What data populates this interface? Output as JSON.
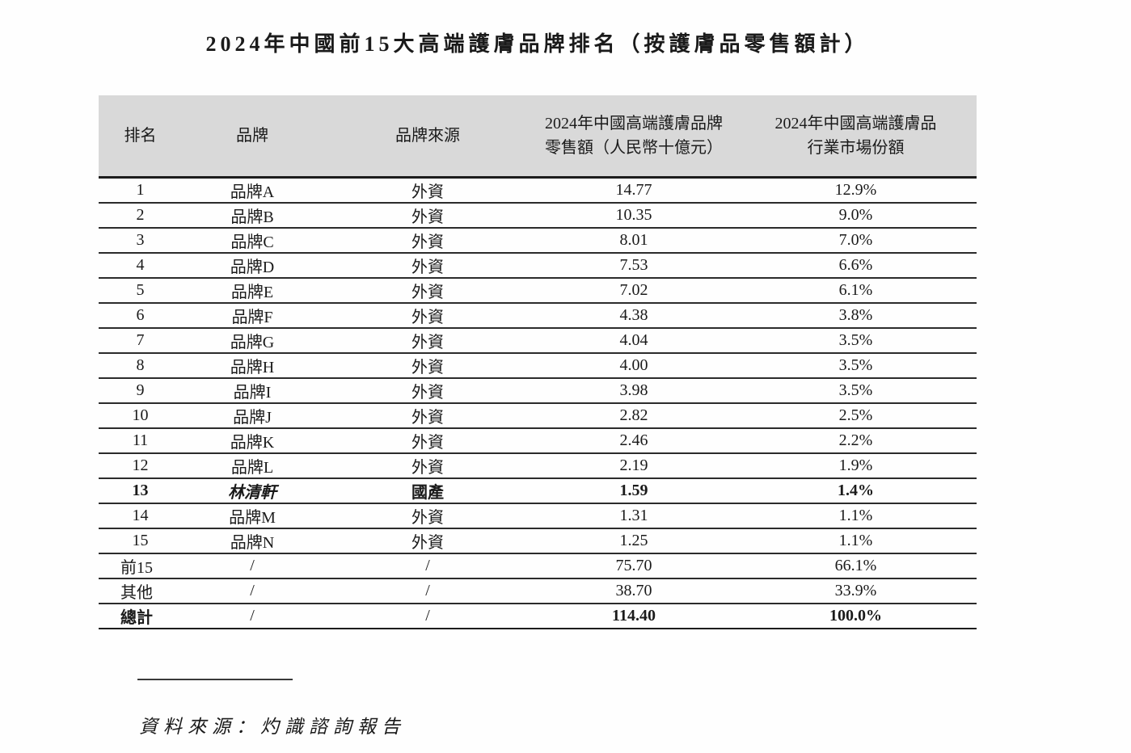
{
  "title": "2024年中國前15大高端護膚品牌排名（按護膚品零售額計）",
  "table": {
    "headers": {
      "rank": "排名",
      "brand": "品牌",
      "origin": "品牌來源",
      "retail": "2024年中國高端護膚品牌\n零售額（人民幣十億元）",
      "share": "2024年中國高端護膚品\n行業市場份額"
    },
    "rows": [
      {
        "rank": "1",
        "brand": "品牌A",
        "origin": "外資",
        "retail": "14.77",
        "share": "12.9%"
      },
      {
        "rank": "2",
        "brand": "品牌B",
        "origin": "外資",
        "retail": "10.35",
        "share": "9.0%"
      },
      {
        "rank": "3",
        "brand": "品牌C",
        "origin": "外資",
        "retail": "8.01",
        "share": "7.0%"
      },
      {
        "rank": "4",
        "brand": "品牌D",
        "origin": "外資",
        "retail": "7.53",
        "share": "6.6%"
      },
      {
        "rank": "5",
        "brand": "品牌E",
        "origin": "外資",
        "retail": "7.02",
        "share": "6.1%"
      },
      {
        "rank": "6",
        "brand": "品牌F",
        "origin": "外資",
        "retail": "4.38",
        "share": "3.8%"
      },
      {
        "rank": "7",
        "brand": "品牌G",
        "origin": "外資",
        "retail": "4.04",
        "share": "3.5%"
      },
      {
        "rank": "8",
        "brand": "品牌H",
        "origin": "外資",
        "retail": "4.00",
        "share": "3.5%"
      },
      {
        "rank": "9",
        "brand": "品牌I",
        "origin": "外資",
        "retail": "3.98",
        "share": "3.5%"
      },
      {
        "rank": "10",
        "brand": "品牌J",
        "origin": "外資",
        "retail": "2.82",
        "share": "2.5%"
      },
      {
        "rank": "11",
        "brand": "品牌K",
        "origin": "外資",
        "retail": "2.46",
        "share": "2.2%"
      },
      {
        "rank": "12",
        "brand": "品牌L",
        "origin": "外資",
        "retail": "2.19",
        "share": "1.9%"
      },
      {
        "rank": "13",
        "brand": "林清軒",
        "origin": "國產",
        "retail": "1.59",
        "share": "1.4%"
      },
      {
        "rank": "14",
        "brand": "品牌M",
        "origin": "外資",
        "retail": "1.31",
        "share": "1.1%"
      },
      {
        "rank": "15",
        "brand": "品牌N",
        "origin": "外資",
        "retail": "1.25",
        "share": "1.1%"
      },
      {
        "rank": "前15",
        "brand": "/",
        "origin": "/",
        "retail": "75.70",
        "share": "66.1%"
      },
      {
        "rank": "其他",
        "brand": "/",
        "origin": "/",
        "retail": "38.70",
        "share": "33.9%"
      },
      {
        "rank": "總計",
        "brand": "/",
        "origin": "/",
        "retail": "114.40",
        "share": "100.0%"
      }
    ]
  },
  "source": "資料來源：灼識諮詢報告",
  "colors": {
    "header_bg": "#d9d9d9",
    "border": "#2b2b2b",
    "text": "#1a1a1a",
    "page_bg": "#fefefe"
  }
}
